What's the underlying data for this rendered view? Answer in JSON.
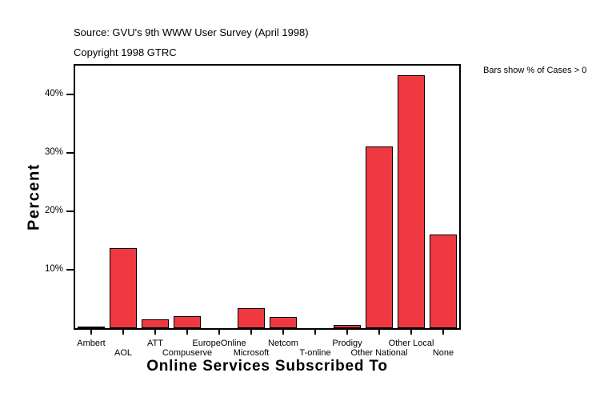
{
  "header": {
    "source_line": "Source: GVU's 9th WWW User Survey (April 1998)",
    "copyright_line": "Copyright 1998 GTRC"
  },
  "annotation": {
    "text": "Bars show % of Cases > 0"
  },
  "chart_data": {
    "type": "bar",
    "title": "",
    "xlabel": "Online Services Subscribed To",
    "ylabel": "Percent",
    "categories": [
      "Ambert",
      "AOL",
      "ATT",
      "Compuserve",
      "EuropeOnline",
      "Microsoft",
      "Netcom",
      "T-online",
      "Prodigy",
      "Other National",
      "Other Local",
      "None"
    ],
    "values": [
      0.1,
      13.7,
      1.5,
      2.0,
      0,
      3.5,
      1.9,
      0,
      0.6,
      31.2,
      43.4,
      16.1
    ],
    "ylim": [
      0,
      45
    ],
    "yticks": [
      10,
      20,
      30,
      40
    ],
    "ytick_labels": [
      "10%",
      "20%",
      "30%",
      "40%"
    ],
    "grid": false,
    "legend_position": "none",
    "bar_color": "#ee3940",
    "bar_border_color": "#000000",
    "frame_color": "#000000",
    "annotation": "Bars show % of Cases > 0",
    "source": "Source: GVU's 9th WWW User Survey (April 1998)",
    "copyright": "Copyright 1998 GTRC"
  }
}
